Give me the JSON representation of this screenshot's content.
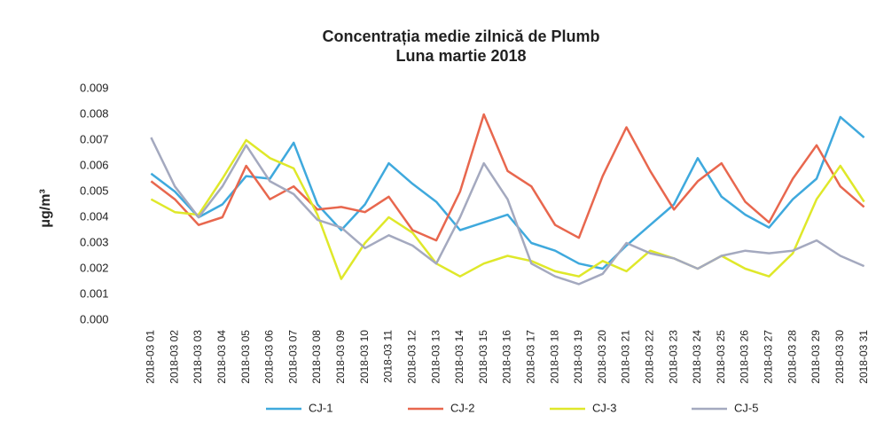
{
  "chart_data": {
    "type": "line",
    "title": "Concentrația medie zilnică de Plumb",
    "subtitle": "Luna martie 2018",
    "y_label": "μg/m³",
    "categories": [
      "2018-03 01",
      "2018-03 02",
      "2018-03 03",
      "2018-03 04",
      "2018-03 05",
      "2018-03 06",
      "2018-03 07",
      "2018-03 08",
      "2018-03 09",
      "2018-03 10",
      "2018-03 11",
      "2018-03 12",
      "2018-03 13",
      "2018-03 14",
      "2018-03 15",
      "2018-03 16",
      "2018-03 17",
      "2018-03 18",
      "2018-03 19",
      "2018-03 20",
      "2018-03 21",
      "2018-03 22",
      "2018-03 23",
      "2018-03 24",
      "2018-03 25",
      "2018-03 26",
      "2018-03 27",
      "2018-03 28",
      "2018-03 29",
      "2018-03 30",
      "2018-03 31"
    ],
    "series": [
      {
        "name": "CJ-1",
        "color": "#3fa9dd",
        "values": [
          0.0057,
          0.005,
          0.004,
          0.0045,
          0.0056,
          0.0055,
          0.0069,
          0.0045,
          0.0035,
          0.0045,
          0.0061,
          0.0053,
          0.0046,
          0.0035,
          0.0038,
          0.0041,
          0.003,
          0.0027,
          0.0022,
          0.002,
          0.0029,
          0.0037,
          0.0045,
          0.0063,
          0.0048,
          0.0041,
          0.0036,
          0.0047,
          0.0055,
          0.0079,
          0.0071
        ]
      },
      {
        "name": "CJ-2",
        "color": "#e8674e",
        "values": [
          0.0054,
          0.0047,
          0.0037,
          0.004,
          0.006,
          0.0047,
          0.0052,
          0.0043,
          0.0044,
          0.0042,
          0.0048,
          0.0035,
          0.0031,
          0.005,
          0.008,
          0.0058,
          0.0052,
          0.0037,
          0.0032,
          0.0056,
          0.0075,
          0.0058,
          0.0043,
          0.0054,
          0.0061,
          0.0046,
          0.0038,
          0.0055,
          0.0068,
          0.0052,
          0.0044
        ]
      },
      {
        "name": "CJ-3",
        "color": "#dfe82a",
        "values": [
          0.0047,
          0.0042,
          0.0041,
          0.0055,
          0.007,
          0.0063,
          0.0059,
          0.0041,
          0.0016,
          0.003,
          0.004,
          0.0034,
          0.0022,
          0.0017,
          0.0022,
          0.0025,
          0.0023,
          0.0019,
          0.0017,
          0.0023,
          0.0019,
          0.0027,
          0.0024,
          0.002,
          0.0025,
          0.002,
          0.0017,
          0.0026,
          0.0047,
          0.006,
          0.0046
        ]
      },
      {
        "name": "CJ-5",
        "color": "#a4a9bf",
        "values": [
          0.0071,
          0.0052,
          0.004,
          0.0052,
          0.0068,
          0.0054,
          0.0049,
          0.0039,
          0.0036,
          0.0028,
          0.0033,
          0.0029,
          0.0022,
          0.004,
          0.0061,
          0.0047,
          0.0022,
          0.0017,
          0.0014,
          0.0018,
          0.003,
          0.0026,
          0.0024,
          0.002,
          0.0025,
          0.0027,
          0.0026,
          0.0027,
          0.0031,
          0.0025,
          0.0021
        ]
      }
    ],
    "ylim": [
      0,
      0.009
    ],
    "yticks": [
      {
        "value": 0,
        "label": "0.000"
      },
      {
        "value": 0.001,
        "label": "0.001"
      },
      {
        "value": 0.002,
        "label": "0.002"
      },
      {
        "value": 0.003,
        "label": "0.003"
      },
      {
        "value": 0.004,
        "label": "0.004"
      },
      {
        "value": 0.005,
        "label": "0.005"
      },
      {
        "value": 0.006,
        "label": "0.006"
      },
      {
        "value": 0.007,
        "label": "0.007"
      },
      {
        "value": 0.008,
        "label": "0.008"
      },
      {
        "value": 0.009,
        "label": "0.009"
      }
    ],
    "grid": false,
    "legend": "bottom"
  }
}
